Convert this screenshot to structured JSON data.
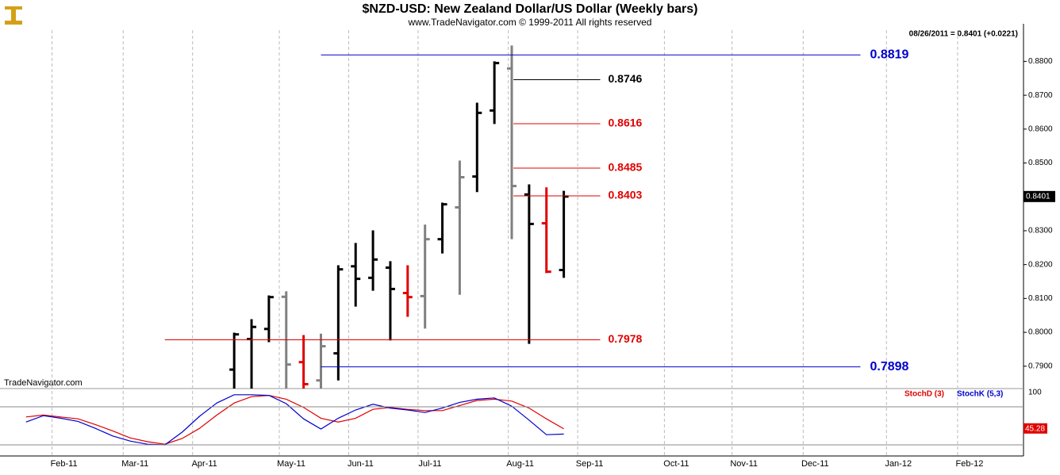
{
  "chart_data": [
    {
      "type": "ohlc",
      "title": "$NZD-USD:  New Zealand Dollar/US Dollar  (Weekly bars)",
      "subtitle": "www.TradeNavigator.com © 1999-2011 All rights reserved",
      "annotation": "08/26/2011 = 0.8401 (+0.0221)",
      "watermark": "TradeNavigator.com",
      "x": [
        12,
        13,
        14,
        15,
        16,
        17,
        18,
        19,
        20,
        21,
        22,
        23,
        24,
        25,
        26,
        27,
        28,
        29,
        30,
        31
      ],
      "open": [
        0.789,
        0.798,
        0.801,
        0.8105,
        0.7912,
        0.7858,
        0.7938,
        0.8195,
        0.8161,
        0.8191,
        0.8116,
        0.8107,
        0.8275,
        0.8369,
        0.846,
        0.8655,
        0.8779,
        0.8407,
        0.8322,
        0.8184
      ],
      "high": [
        0.7999,
        0.8039,
        0.8109,
        0.8121,
        0.7992,
        0.7996,
        0.8198,
        0.8264,
        0.8301,
        0.821,
        0.8198,
        0.8318,
        0.8383,
        0.8507,
        0.8678,
        0.88,
        0.8847,
        0.8437,
        0.8428,
        0.8418
      ],
      "low": [
        0.78,
        0.783,
        0.7971,
        0.782,
        0.78,
        0.782,
        0.7858,
        0.8076,
        0.8123,
        0.7976,
        0.8046,
        0.8011,
        0.8233,
        0.8111,
        0.8414,
        0.8615,
        0.8275,
        0.7966,
        0.8175,
        0.8161
      ],
      "close": [
        0.7994,
        0.8016,
        0.8104,
        0.7905,
        0.7847,
        0.7959,
        0.8186,
        0.8158,
        0.8215,
        0.8128,
        0.8104,
        0.8275,
        0.8378,
        0.8458,
        0.8648,
        0.8795,
        0.8432,
        0.832,
        0.8179,
        0.8401
      ],
      "colors": [
        "#000000",
        "#000000",
        "#000000",
        "#808080",
        "#e00000",
        "#808080",
        "#000000",
        "#000000",
        "#000000",
        "#000000",
        "#e00000",
        "#808080",
        "#000000",
        "#808080",
        "#000000",
        "#000000",
        "#808080",
        "#000000",
        "#e00000",
        "#000000"
      ],
      "xlim": [
        -1.5,
        57.5
      ],
      "xticks": [
        {
          "value": 1.5,
          "label": "Feb-11"
        },
        {
          "value": 5.6,
          "label": "Mar-11"
        },
        {
          "value": 9.6,
          "label": "Apr-11"
        },
        {
          "value": 14.6,
          "label": "May-11"
        },
        {
          "value": 18.6,
          "label": "Jun-11"
        },
        {
          "value": 22.6,
          "label": "Jul-11"
        },
        {
          "value": 27.8,
          "label": "Aug-11"
        },
        {
          "value": 31.8,
          "label": "Sep-11"
        },
        {
          "value": 36.8,
          "label": "Oct-11"
        },
        {
          "value": 40.7,
          "label": "Nov-11"
        },
        {
          "value": 44.8,
          "label": "Dec-11"
        },
        {
          "value": 49.6,
          "label": "Jan-12"
        },
        {
          "value": 53.7,
          "label": "Feb-12"
        }
      ],
      "ylim": [
        0.7834,
        0.8911
      ],
      "yticks": [
        {
          "value": 0.79,
          "label": "0.7900"
        },
        {
          "value": 0.8,
          "label": "0.8000"
        },
        {
          "value": 0.81,
          "label": "0.8100"
        },
        {
          "value": 0.82,
          "label": "0.8200"
        },
        {
          "value": 0.83,
          "label": "0.8300"
        },
        {
          "value": 0.84,
          "label": "0.8400"
        },
        {
          "value": 0.85,
          "label": "0.8500"
        },
        {
          "value": 0.86,
          "label": "0.8600"
        },
        {
          "value": 0.87,
          "label": "0.8700"
        },
        {
          "value": 0.88,
          "label": "0.8800"
        }
      ],
      "grid": true,
      "levels": [
        {
          "value": 0.8819,
          "color": "#0000cc",
          "x": [
            17,
            48.1
          ]
        },
        {
          "value": 0.8746,
          "color": "#000000",
          "x": [
            28.1,
            33.1
          ]
        },
        {
          "value": 0.8616,
          "color": "#e00000",
          "x": [
            28.1,
            33.1
          ]
        },
        {
          "value": 0.8485,
          "color": "#e00000",
          "x": [
            28.1,
            33.1
          ]
        },
        {
          "value": 0.8403,
          "color": "#e00000",
          "x": [
            28.1,
            33.1
          ]
        },
        {
          "value": 0.7978,
          "color": "#e00000",
          "x": [
            8,
            33.1
          ]
        },
        {
          "value": 0.7898,
          "color": "#0000cc",
          "x": [
            17,
            48.1
          ]
        }
      ]
    },
    {
      "type": "line",
      "x": [
        0,
        1,
        2,
        3,
        4,
        5,
        6,
        7,
        8,
        9,
        10,
        11,
        12,
        13,
        14,
        15,
        16,
        17,
        18,
        19,
        20,
        21,
        22,
        23,
        24,
        25,
        26,
        27,
        28,
        29,
        30,
        31
      ],
      "series": [
        {
          "name": "StochD (3)",
          "color": "#e00000",
          "values": [
            64,
            67,
            64,
            61,
            52,
            42,
            31,
            25,
            21,
            30,
            46,
            67,
            86,
            96,
            98,
            92,
            79,
            62,
            56,
            62,
            76,
            79,
            76,
            74,
            74,
            82,
            90,
            92,
            89,
            78,
            61,
            45.28
          ]
        },
        {
          "name": "StochK (5,3)",
          "color": "#0000cc",
          "values": [
            56,
            66,
            62,
            57,
            46,
            34,
            26,
            21,
            20,
            40,
            65,
            86,
            99,
            99,
            98,
            85,
            61,
            45,
            62,
            75,
            84,
            78,
            75,
            71,
            78,
            87,
            92,
            94,
            81,
            59,
            36,
            37
          ]
        }
      ],
      "ylim": [
        0,
        100
      ],
      "yticks": [
        100
      ],
      "hlines": [
        80,
        20
      ]
    }
  ]
}
